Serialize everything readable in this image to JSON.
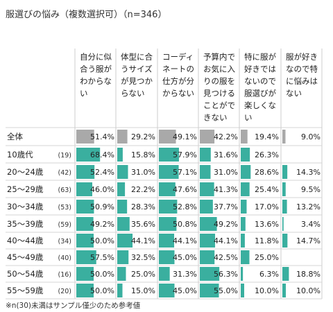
{
  "title": "服選びの悩み（複数選択可）（n=346）",
  "footnote": "※n(30)未満はサンプル僅少のため参考値",
  "colors": {
    "bar_main": "#3aaf9f",
    "bar_total": "#a9a9a9",
    "grid": "#cccccc",
    "row_line": "#d6d6d6"
  },
  "chart_data": {
    "type": "table",
    "columns": [
      [
        "自分に似",
        "合う服が",
        "わからな",
        "い"
      ],
      [
        "体型に合",
        "うサイズ",
        "が見つか",
        "らない"
      ],
      [
        "コーディ",
        "ネートの",
        "仕方が分",
        "からない"
      ],
      [
        "予算内で",
        "お気に入",
        "りの服を",
        "見つける",
        "ことがで",
        "きない"
      ],
      [
        "特に服が",
        "好きでは",
        "ないので",
        "服選びが",
        "楽しくな",
        "い"
      ],
      [
        "服が好き",
        "なので特",
        "に悩みは",
        "ない"
      ]
    ],
    "rows": [
      {
        "label": "全体",
        "n": "",
        "values": [
          51.4,
          29.2,
          49.1,
          42.2,
          19.4,
          9.0
        ],
        "total": true
      },
      {
        "label": "10歳代",
        "n": "(19)",
        "values": [
          68.4,
          15.8,
          57.9,
          31.6,
          26.3,
          null
        ]
      },
      {
        "label": "20～24歳",
        "n": "(42)",
        "values": [
          52.4,
          31.0,
          57.1,
          31.0,
          28.6,
          14.3
        ]
      },
      {
        "label": "25～29歳",
        "n": "(63)",
        "values": [
          46.0,
          22.2,
          47.6,
          41.3,
          25.4,
          9.5
        ]
      },
      {
        "label": "30～34歳",
        "n": "(53)",
        "values": [
          50.9,
          28.3,
          52.8,
          37.7,
          17.0,
          13.2
        ]
      },
      {
        "label": "35～39歳",
        "n": "(59)",
        "values": [
          49.2,
          35.6,
          50.8,
          49.2,
          13.6,
          3.4
        ]
      },
      {
        "label": "40～44歳",
        "n": "(34)",
        "values": [
          50.0,
          44.1,
          44.1,
          44.1,
          11.8,
          14.7
        ]
      },
      {
        "label": "45～49歳",
        "n": "(40)",
        "values": [
          57.5,
          32.5,
          45.0,
          42.5,
          25.0,
          null
        ]
      },
      {
        "label": "50～54歳",
        "n": "(16)",
        "values": [
          50.0,
          25.0,
          31.3,
          56.3,
          6.3,
          18.8
        ]
      },
      {
        "label": "55～59歳",
        "n": "(20)",
        "values": [
          50.0,
          15.0,
          45.0,
          55.0,
          10.0,
          10.0
        ]
      }
    ],
    "value_suffix": "%",
    "scale_max": 100
  }
}
